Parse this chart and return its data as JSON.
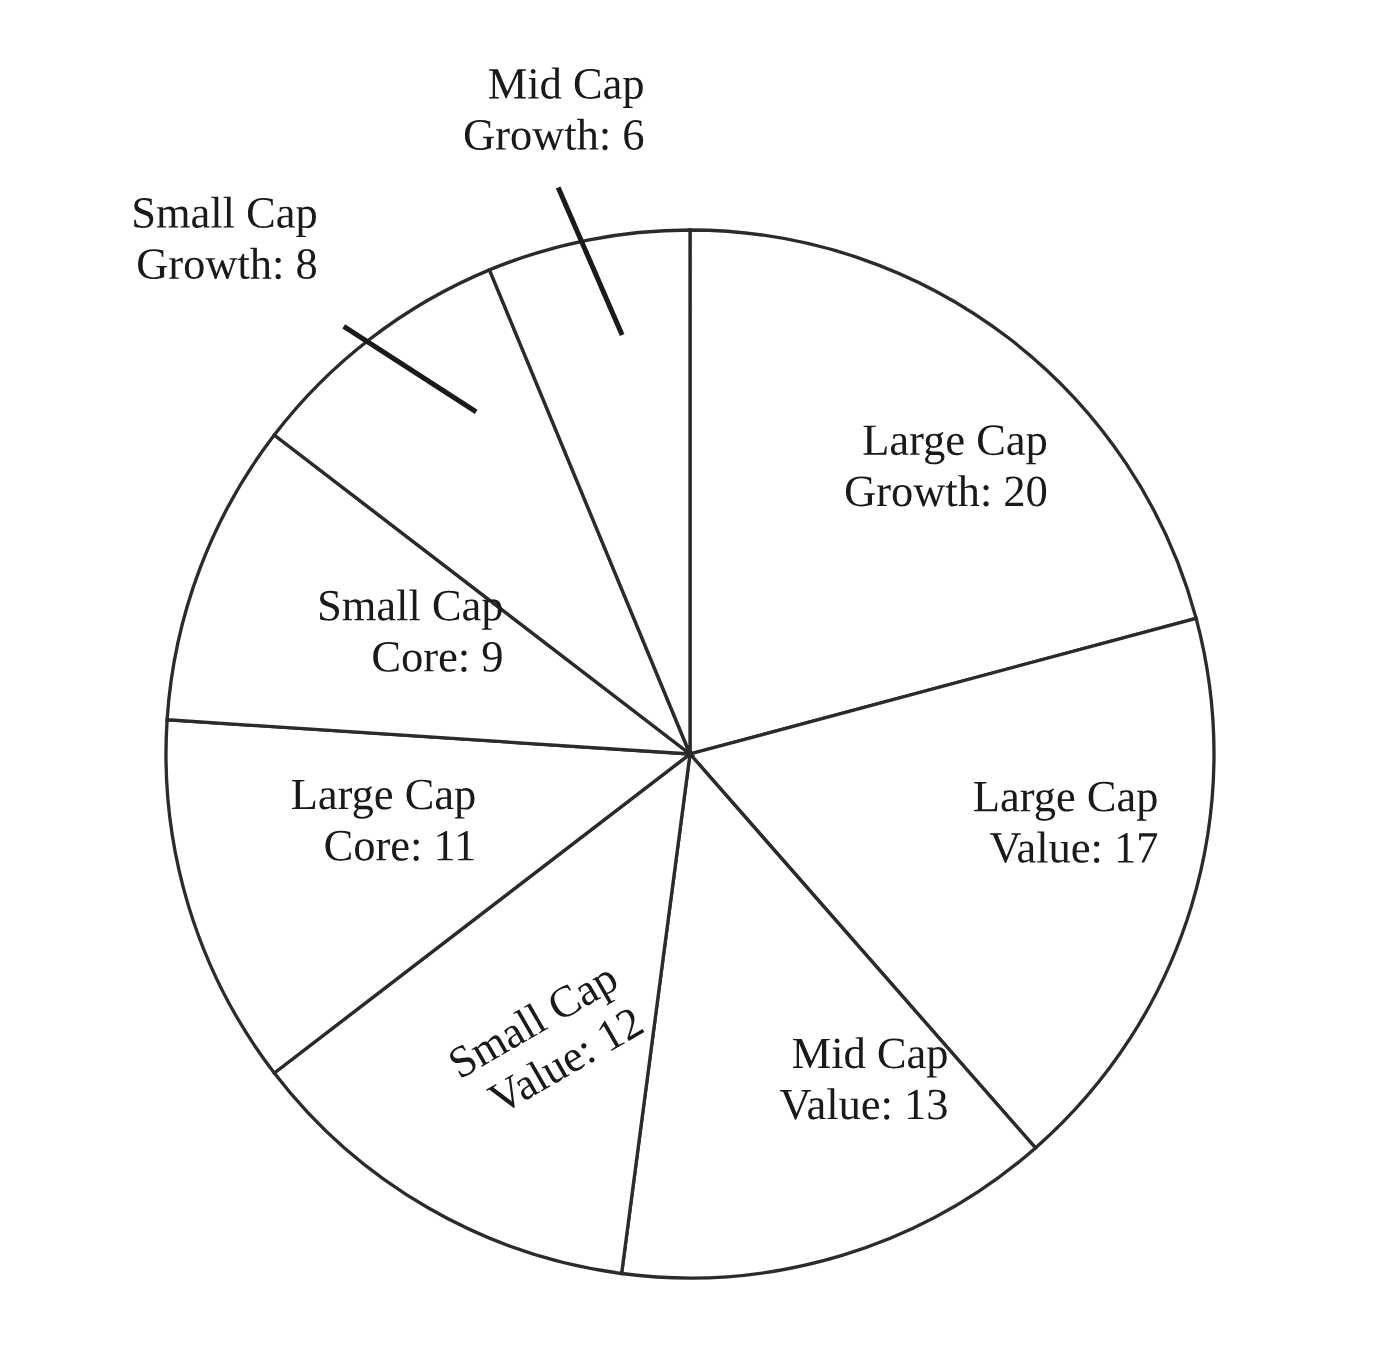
{
  "chart_data": {
    "type": "pie",
    "categories": [
      "Large Cap Growth: 20",
      "Large Cap Value: 17",
      "Mid Cap Value: 13",
      "Small Cap Value: 12",
      "Large Cap Core: 11",
      "Small Cap Core: 9",
      "Small Cap Growth: 8",
      "Mid Cap Growth: 6"
    ],
    "values": [
      20,
      17,
      13,
      12,
      11,
      9,
      8,
      6
    ],
    "colors": [
      "#ffffff",
      "#ffffff",
      "#ffffff",
      "#ffffff",
      "#ffffff",
      "#ffffff",
      "#ffffff",
      "#ffffff"
    ]
  }
}
